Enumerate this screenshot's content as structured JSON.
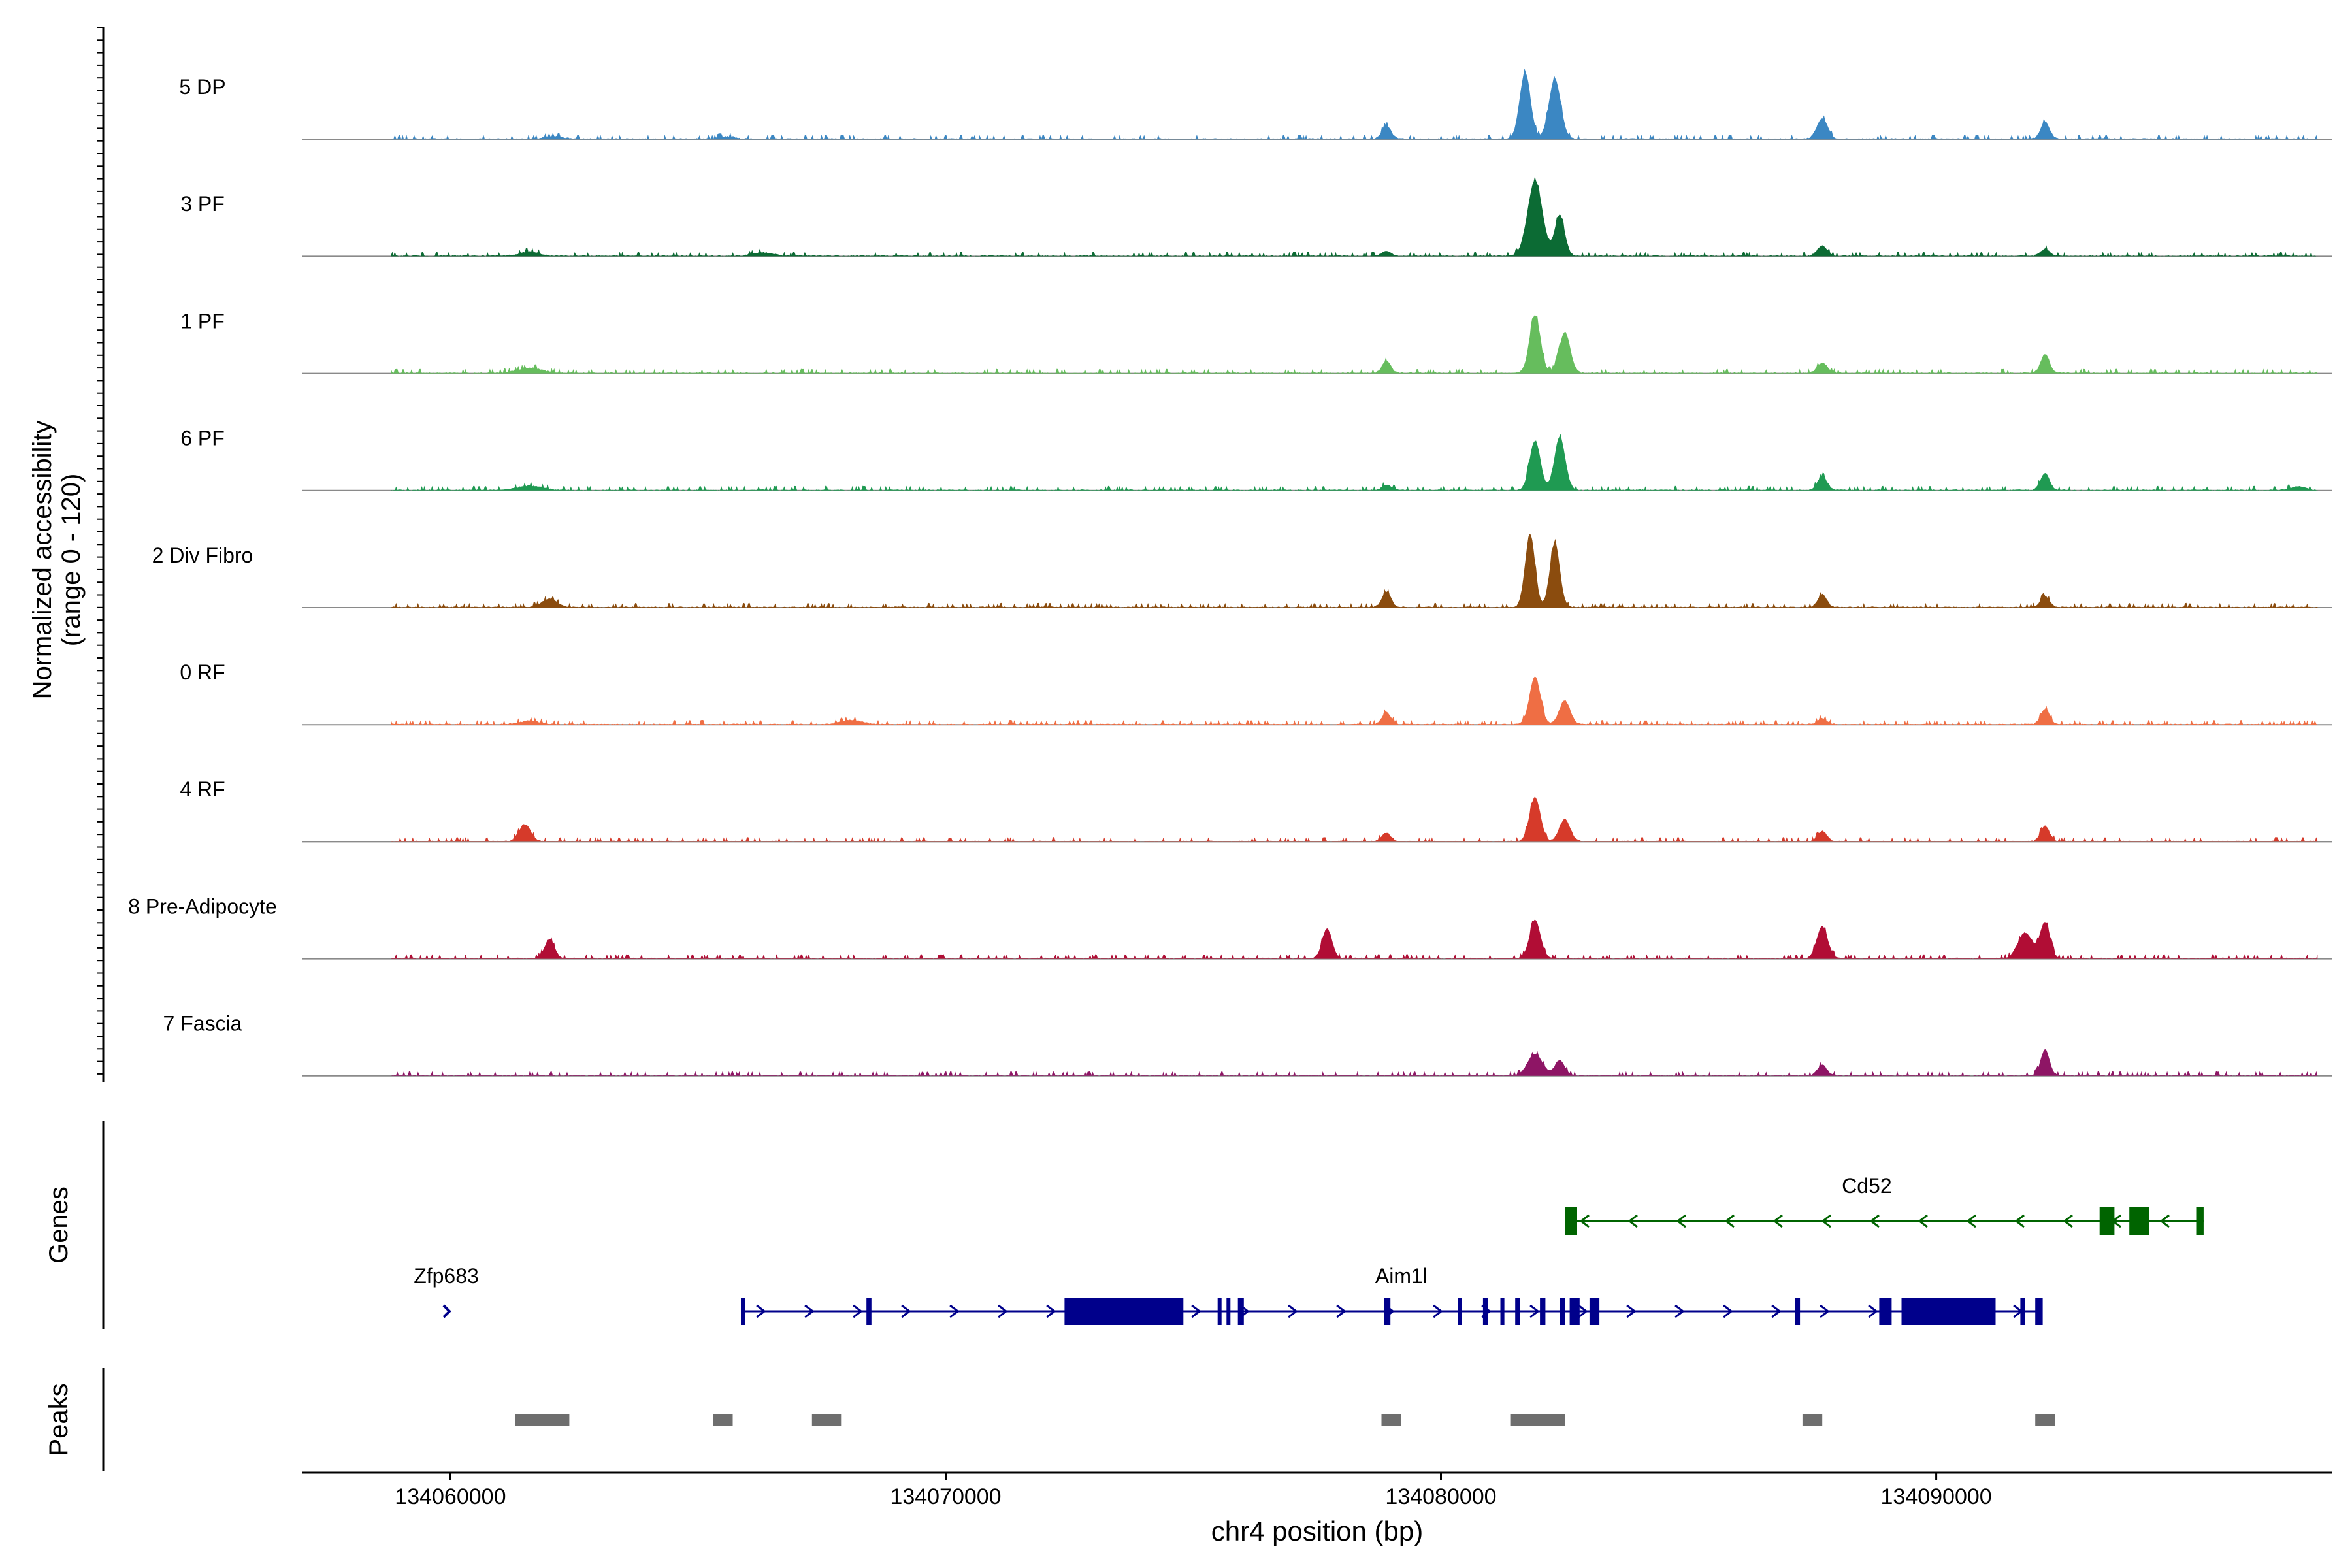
{
  "chart_data": {
    "type": "coverage",
    "title": "",
    "region": {
      "chrom": "chr4",
      "start": 134057000,
      "end": 134098000
    },
    "xlabel": "chr4 position (bp)",
    "xticks": [
      134060000,
      134070000,
      134080000,
      134090000
    ],
    "ylabel_coverage": "Normalized accessibility",
    "ylabel_range": "(range 0 - 120)",
    "ylim": [
      0,
      120
    ],
    "ylabel_genes": "Genes",
    "ylabel_peaks": "Peaks",
    "tracks": [
      {
        "name": "5 DP",
        "color": "#3b87c3",
        "peaks": [
          [
            134062100,
            3,
            180
          ],
          [
            134065600,
            3,
            150
          ],
          [
            134078900,
            16,
            90
          ],
          [
            134081700,
            78,
            110
          ],
          [
            134082300,
            70,
            120
          ],
          [
            134087700,
            24,
            110
          ],
          [
            134092200,
            20,
            90
          ]
        ]
      },
      {
        "name": "3 PF",
        "color": "#0c6b34",
        "peaks": [
          [
            134061600,
            5,
            200
          ],
          [
            134066300,
            4,
            200
          ],
          [
            134078900,
            6,
            90
          ],
          [
            134081900,
            88,
            150
          ],
          [
            134082400,
            48,
            100
          ],
          [
            134087700,
            12,
            100
          ],
          [
            134092200,
            8,
            90
          ]
        ]
      },
      {
        "name": "1 PF",
        "color": "#66bd5d",
        "peaks": [
          [
            134061600,
            6,
            250
          ],
          [
            134078900,
            14,
            90
          ],
          [
            134081900,
            68,
            110
          ],
          [
            134082500,
            48,
            110
          ],
          [
            134087700,
            12,
            100
          ],
          [
            134092200,
            22,
            90
          ]
        ]
      },
      {
        "name": "6 PF",
        "color": "#1f9a52",
        "peaks": [
          [
            134061600,
            5,
            250
          ],
          [
            134078900,
            6,
            90
          ],
          [
            134081900,
            58,
            110
          ],
          [
            134082400,
            62,
            110
          ],
          [
            134087700,
            16,
            100
          ],
          [
            134092200,
            20,
            90
          ],
          [
            134097300,
            4,
            150
          ]
        ]
      },
      {
        "name": "2 Div Fibro",
        "color": "#8b4c0e",
        "peaks": [
          [
            134062000,
            10,
            150
          ],
          [
            134078900,
            18,
            90
          ],
          [
            134081800,
            86,
            100
          ],
          [
            134082300,
            76,
            100
          ],
          [
            134087700,
            15,
            90
          ],
          [
            134092200,
            13,
            90
          ]
        ]
      },
      {
        "name": "0 RF",
        "color": "#ef6e44",
        "peaks": [
          [
            134061600,
            4,
            200
          ],
          [
            134068100,
            5,
            200
          ],
          [
            134078900,
            14,
            90
          ],
          [
            134081900,
            56,
            110
          ],
          [
            134082500,
            28,
            110
          ],
          [
            134087700,
            7,
            90
          ],
          [
            134092200,
            18,
            90
          ]
        ]
      },
      {
        "name": "4 RF",
        "color": "#d63a2a",
        "peaks": [
          [
            134061500,
            20,
            120
          ],
          [
            134078900,
            10,
            90
          ],
          [
            134081900,
            52,
            110
          ],
          [
            134082500,
            26,
            110
          ],
          [
            134087700,
            12,
            90
          ],
          [
            134092200,
            18,
            90
          ]
        ]
      },
      {
        "name": "8 Pre-Adipocyte",
        "color": "#b10d35",
        "peaks": [
          [
            134062000,
            22,
            100
          ],
          [
            134077700,
            35,
            100
          ],
          [
            134081900,
            45,
            110
          ],
          [
            134087700,
            38,
            110
          ],
          [
            134091800,
            30,
            150
          ],
          [
            134092200,
            42,
            100
          ]
        ]
      },
      {
        "name": "7 Fascia",
        "color": "#8e1565",
        "peaks": [
          [
            134081900,
            25,
            150
          ],
          [
            134082400,
            18,
            100
          ],
          [
            134087700,
            13,
            90
          ],
          [
            134092200,
            30,
            90
          ]
        ]
      }
    ],
    "genes": [
      {
        "name": "Cd52",
        "strand": "-",
        "color": "#006400",
        "start": 134082500,
        "end": 134095400,
        "exons": [
          [
            134082500,
            134082750
          ],
          [
            134093300,
            134093600
          ],
          [
            134093900,
            134094300
          ],
          [
            134095250,
            134095400
          ]
        ]
      },
      {
        "name": "Zfp683",
        "strand": "+",
        "color": "#00008b",
        "start": 134059870,
        "end": 134059960,
        "exons": []
      },
      {
        "name": "Aim1l",
        "strand": "+",
        "color": "#00008b",
        "start": 134065880,
        "end": 134092150,
        "exons": [
          [
            134065880,
            134065930
          ],
          [
            134068400,
            134068500
          ],
          [
            134072400,
            134074800
          ],
          [
            134075500,
            134075560
          ],
          [
            134075680,
            134075740
          ],
          [
            134075900,
            134076020
          ],
          [
            134078850,
            134078980
          ],
          [
            134080350,
            134080420
          ],
          [
            134080850,
            134080950
          ],
          [
            134081200,
            134081280
          ],
          [
            134081500,
            134081600
          ],
          [
            134082000,
            134082110
          ],
          [
            134082400,
            134082510
          ],
          [
            134082600,
            134082800
          ],
          [
            134083000,
            134083200
          ],
          [
            134087150,
            134087250
          ],
          [
            134088850,
            134089100
          ],
          [
            134089300,
            134091200
          ],
          [
            134091700,
            134091800
          ],
          [
            134092000,
            134092150
          ]
        ]
      }
    ],
    "peak_regions": [
      [
        134061300,
        134062400
      ],
      [
        134065300,
        134065700
      ],
      [
        134067300,
        134067900
      ],
      [
        134078800,
        134079200
      ],
      [
        134081400,
        134082500
      ],
      [
        134087300,
        134087700
      ],
      [
        134092000,
        134092400
      ]
    ]
  }
}
